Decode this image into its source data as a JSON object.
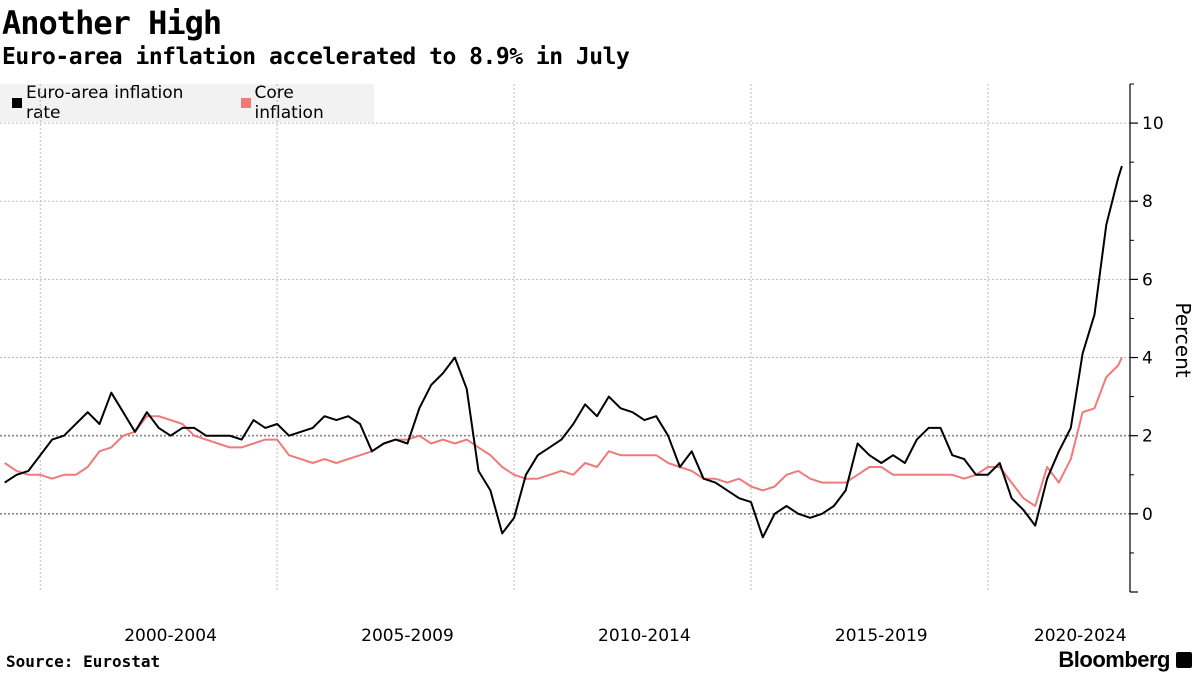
{
  "header": {
    "title": "Another High",
    "subtitle": "Euro-area inflation accelerated to 8.9% in July"
  },
  "footer": {
    "source": "Source: Eurostat",
    "brand": "Bloomberg"
  },
  "chart_data": {
    "type": "line",
    "title": "Another High",
    "subtitle": "Euro-area inflation accelerated to 8.9% in July",
    "ylabel": "Percent",
    "ylim": [
      -2,
      11
    ],
    "yticks": [
      0,
      2,
      4,
      6,
      8,
      10
    ],
    "xlim": [
      1998.9,
      2022.75
    ],
    "xgroups": [
      {
        "label": "2000-2004",
        "center": 2002.5
      },
      {
        "label": "2005-2009",
        "center": 2007.5
      },
      {
        "label": "2010-2014",
        "center": 2012.5
      },
      {
        "label": "2015-2019",
        "center": 2017.5
      },
      {
        "label": "2020-2024",
        "center": 2021.7
      }
    ],
    "xdividers": [
      1999.75,
      2004.75,
      2009.75,
      2014.75,
      2019.75
    ],
    "grid": true,
    "legend_position": "top-left",
    "series": [
      {
        "name": "Euro-area inflation rate",
        "color": "#000000",
        "points": [
          [
            1999.0,
            0.8
          ],
          [
            1999.25,
            1.0
          ],
          [
            1999.5,
            1.1
          ],
          [
            1999.75,
            1.5
          ],
          [
            2000.0,
            1.9
          ],
          [
            2000.25,
            2.0
          ],
          [
            2000.5,
            2.3
          ],
          [
            2000.75,
            2.6
          ],
          [
            2001.0,
            2.3
          ],
          [
            2001.25,
            3.1
          ],
          [
            2001.5,
            2.6
          ],
          [
            2001.75,
            2.1
          ],
          [
            2002.0,
            2.6
          ],
          [
            2002.25,
            2.2
          ],
          [
            2002.5,
            2.0
          ],
          [
            2002.75,
            2.2
          ],
          [
            2003.0,
            2.2
          ],
          [
            2003.25,
            2.0
          ],
          [
            2003.5,
            2.0
          ],
          [
            2003.75,
            2.0
          ],
          [
            2004.0,
            1.9
          ],
          [
            2004.25,
            2.4
          ],
          [
            2004.5,
            2.2
          ],
          [
            2004.75,
            2.3
          ],
          [
            2005.0,
            2.0
          ],
          [
            2005.25,
            2.1
          ],
          [
            2005.5,
            2.2
          ],
          [
            2005.75,
            2.5
          ],
          [
            2006.0,
            2.4
          ],
          [
            2006.25,
            2.5
          ],
          [
            2006.5,
            2.3
          ],
          [
            2006.75,
            1.6
          ],
          [
            2007.0,
            1.8
          ],
          [
            2007.25,
            1.9
          ],
          [
            2007.5,
            1.8
          ],
          [
            2007.75,
            2.7
          ],
          [
            2008.0,
            3.3
          ],
          [
            2008.25,
            3.6
          ],
          [
            2008.5,
            4.0
          ],
          [
            2008.75,
            3.2
          ],
          [
            2009.0,
            1.1
          ],
          [
            2009.25,
            0.6
          ],
          [
            2009.5,
            -0.5
          ],
          [
            2009.75,
            -0.1
          ],
          [
            2010.0,
            1.0
          ],
          [
            2010.25,
            1.5
          ],
          [
            2010.5,
            1.7
          ],
          [
            2010.75,
            1.9
          ],
          [
            2011.0,
            2.3
          ],
          [
            2011.25,
            2.8
          ],
          [
            2011.5,
            2.5
          ],
          [
            2011.75,
            3.0
          ],
          [
            2012.0,
            2.7
          ],
          [
            2012.25,
            2.6
          ],
          [
            2012.5,
            2.4
          ],
          [
            2012.75,
            2.5
          ],
          [
            2013.0,
            2.0
          ],
          [
            2013.25,
            1.2
          ],
          [
            2013.5,
            1.6
          ],
          [
            2013.75,
            0.9
          ],
          [
            2014.0,
            0.8
          ],
          [
            2014.25,
            0.6
          ],
          [
            2014.5,
            0.4
          ],
          [
            2014.75,
            0.3
          ],
          [
            2015.0,
            -0.6
          ],
          [
            2015.25,
            0.0
          ],
          [
            2015.5,
            0.2
          ],
          [
            2015.75,
            0.0
          ],
          [
            2016.0,
            -0.1
          ],
          [
            2016.25,
            0.0
          ],
          [
            2016.5,
            0.2
          ],
          [
            2016.75,
            0.6
          ],
          [
            2017.0,
            1.8
          ],
          [
            2017.25,
            1.5
          ],
          [
            2017.5,
            1.3
          ],
          [
            2017.75,
            1.5
          ],
          [
            2018.0,
            1.3
          ],
          [
            2018.25,
            1.9
          ],
          [
            2018.5,
            2.2
          ],
          [
            2018.75,
            2.2
          ],
          [
            2019.0,
            1.5
          ],
          [
            2019.25,
            1.4
          ],
          [
            2019.5,
            1.0
          ],
          [
            2019.75,
            1.0
          ],
          [
            2020.0,
            1.3
          ],
          [
            2020.25,
            0.4
          ],
          [
            2020.5,
            0.1
          ],
          [
            2020.75,
            -0.3
          ],
          [
            2021.0,
            0.9
          ],
          [
            2021.25,
            1.6
          ],
          [
            2021.5,
            2.2
          ],
          [
            2021.75,
            4.1
          ],
          [
            2022.0,
            5.1
          ],
          [
            2022.25,
            7.4
          ],
          [
            2022.5,
            8.6
          ],
          [
            2022.58,
            8.9
          ]
        ]
      },
      {
        "name": "Core inflation",
        "color": "#f07a7a",
        "points": [
          [
            1999.0,
            1.3
          ],
          [
            1999.25,
            1.1
          ],
          [
            1999.5,
            1.0
          ],
          [
            1999.75,
            1.0
          ],
          [
            2000.0,
            0.9
          ],
          [
            2000.25,
            1.0
          ],
          [
            2000.5,
            1.0
          ],
          [
            2000.75,
            1.2
          ],
          [
            2001.0,
            1.6
          ],
          [
            2001.25,
            1.7
          ],
          [
            2001.5,
            2.0
          ],
          [
            2001.75,
            2.1
          ],
          [
            2002.0,
            2.5
          ],
          [
            2002.25,
            2.5
          ],
          [
            2002.5,
            2.4
          ],
          [
            2002.75,
            2.3
          ],
          [
            2003.0,
            2.0
          ],
          [
            2003.25,
            1.9
          ],
          [
            2003.5,
            1.8
          ],
          [
            2003.75,
            1.7
          ],
          [
            2004.0,
            1.7
          ],
          [
            2004.25,
            1.8
          ],
          [
            2004.5,
            1.9
          ],
          [
            2004.75,
            1.9
          ],
          [
            2005.0,
            1.5
          ],
          [
            2005.25,
            1.4
          ],
          [
            2005.5,
            1.3
          ],
          [
            2005.75,
            1.4
          ],
          [
            2006.0,
            1.3
          ],
          [
            2006.25,
            1.4
          ],
          [
            2006.5,
            1.5
          ],
          [
            2006.75,
            1.6
          ],
          [
            2007.0,
            1.8
          ],
          [
            2007.25,
            1.9
          ],
          [
            2007.5,
            1.9
          ],
          [
            2007.75,
            2.0
          ],
          [
            2008.0,
            1.8
          ],
          [
            2008.25,
            1.9
          ],
          [
            2008.5,
            1.8
          ],
          [
            2008.75,
            1.9
          ],
          [
            2009.0,
            1.7
          ],
          [
            2009.25,
            1.5
          ],
          [
            2009.5,
            1.2
          ],
          [
            2009.75,
            1.0
          ],
          [
            2010.0,
            0.9
          ],
          [
            2010.25,
            0.9
          ],
          [
            2010.5,
            1.0
          ],
          [
            2010.75,
            1.1
          ],
          [
            2011.0,
            1.0
          ],
          [
            2011.25,
            1.3
          ],
          [
            2011.5,
            1.2
          ],
          [
            2011.75,
            1.6
          ],
          [
            2012.0,
            1.5
          ],
          [
            2012.25,
            1.5
          ],
          [
            2012.5,
            1.5
          ],
          [
            2012.75,
            1.5
          ],
          [
            2013.0,
            1.3
          ],
          [
            2013.25,
            1.2
          ],
          [
            2013.5,
            1.1
          ],
          [
            2013.75,
            0.9
          ],
          [
            2014.0,
            0.9
          ],
          [
            2014.25,
            0.8
          ],
          [
            2014.5,
            0.9
          ],
          [
            2014.75,
            0.7
          ],
          [
            2015.0,
            0.6
          ],
          [
            2015.25,
            0.7
          ],
          [
            2015.5,
            1.0
          ],
          [
            2015.75,
            1.1
          ],
          [
            2016.0,
            0.9
          ],
          [
            2016.25,
            0.8
          ],
          [
            2016.5,
            0.8
          ],
          [
            2016.75,
            0.8
          ],
          [
            2017.0,
            1.0
          ],
          [
            2017.25,
            1.2
          ],
          [
            2017.5,
            1.2
          ],
          [
            2017.75,
            1.0
          ],
          [
            2018.0,
            1.0
          ],
          [
            2018.25,
            1.0
          ],
          [
            2018.5,
            1.0
          ],
          [
            2018.75,
            1.0
          ],
          [
            2019.0,
            1.0
          ],
          [
            2019.25,
            0.9
          ],
          [
            2019.5,
            1.0
          ],
          [
            2019.75,
            1.2
          ],
          [
            2020.0,
            1.2
          ],
          [
            2020.25,
            0.8
          ],
          [
            2020.5,
            0.4
          ],
          [
            2020.75,
            0.2
          ],
          [
            2021.0,
            1.2
          ],
          [
            2021.25,
            0.8
          ],
          [
            2021.5,
            1.4
          ],
          [
            2021.75,
            2.6
          ],
          [
            2022.0,
            2.7
          ],
          [
            2022.25,
            3.5
          ],
          [
            2022.5,
            3.8
          ],
          [
            2022.58,
            4.0
          ]
        ]
      }
    ]
  }
}
